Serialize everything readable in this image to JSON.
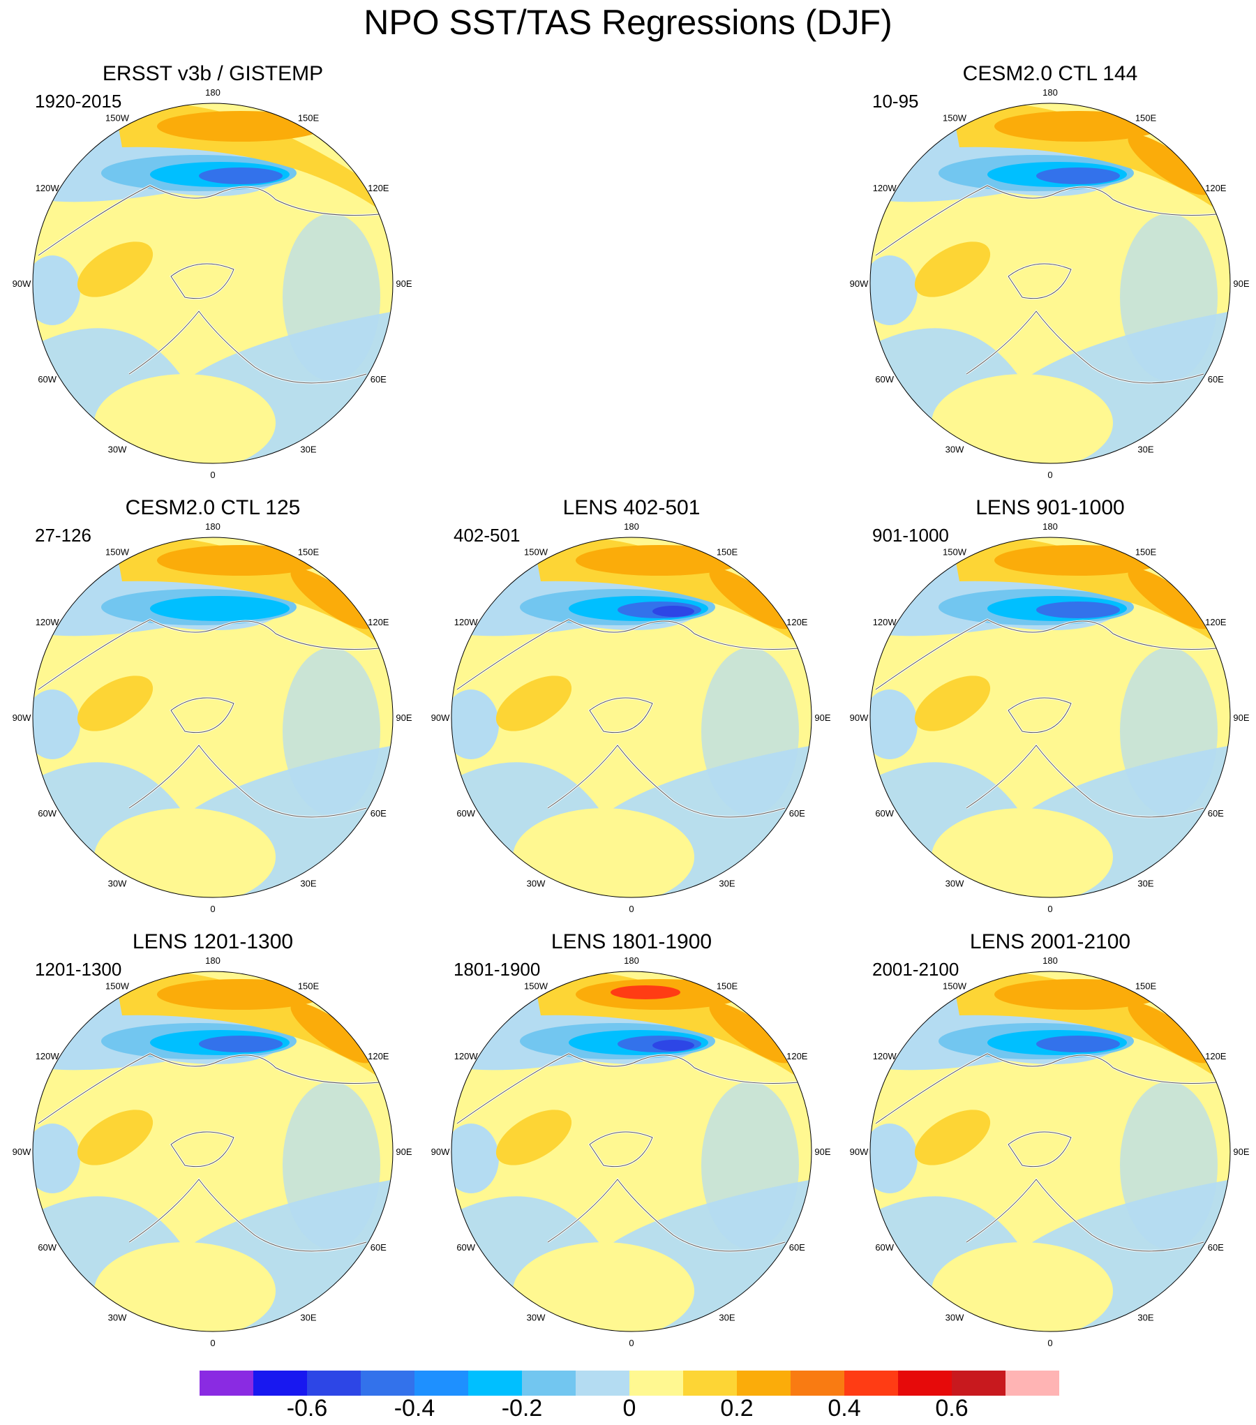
{
  "title": "NPO SST/TAS Regressions (DJF)",
  "lon_labels": [
    "180",
    "150E",
    "120E",
    "90E",
    "60E",
    "30E",
    "0",
    "30W",
    "60W",
    "90W",
    "120W",
    "150W"
  ],
  "panels": [
    {
      "title": "ERSST v3b / GISTEMP",
      "period": "1920-2015"
    },
    {
      "title": "CESM2.0 CTL 144",
      "period": "10-95"
    },
    {
      "title": "CESM2.0 CTL 125",
      "period": "27-126"
    },
    {
      "title": "LENS 402-501",
      "period": "402-501"
    },
    {
      "title": "LENS 901-1000",
      "period": "901-1000"
    },
    {
      "title": "LENS 1201-1300",
      "period": "1201-1300"
    },
    {
      "title": "LENS 1801-1900",
      "period": "1801-1900"
    },
    {
      "title": "LENS 2001-2100",
      "period": "2001-2100"
    }
  ],
  "colorbar": {
    "colors": [
      "#8a2be2",
      "#1818f0",
      "#2d46e6",
      "#3372eb",
      "#1e90ff",
      "#00bfff",
      "#72c6f0",
      "#b4dcf2",
      "#fff891",
      "#fdd535",
      "#fbac0a",
      "#f97b12",
      "#ff3c14",
      "#e60a0a",
      "#c8191e",
      "#ffb4b4"
    ],
    "tick_labels": [
      "-0.6",
      "-0.4",
      "-0.2",
      "0",
      "0.2",
      "0.4",
      "0.6"
    ]
  }
}
